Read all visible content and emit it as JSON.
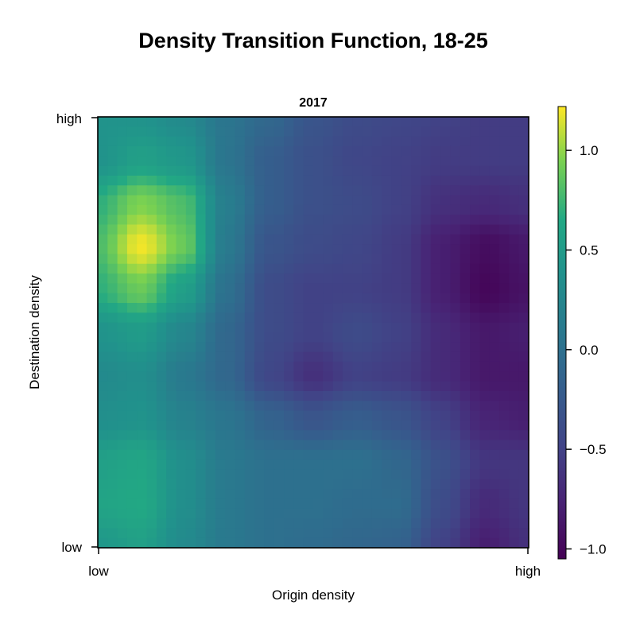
{
  "chart_data": {
    "type": "heatmap",
    "title": "Density Transition Function, 18-25",
    "subtitle": "2017",
    "xlabel": "Origin density",
    "ylabel": "Destination density",
    "xticks": [
      "low",
      "high"
    ],
    "yticks": [
      "low",
      "high"
    ],
    "colormap": "viridis",
    "colorbar": {
      "range": [
        -1.05,
        1.22
      ],
      "ticks": [
        -1.0,
        -0.5,
        0.0,
        0.5,
        1.0
      ],
      "tick_labels": [
        "−1.0",
        "−0.5",
        "0.0",
        "0.5",
        "1.0"
      ]
    },
    "grid": false,
    "x": [
      0.0,
      0.1,
      0.2,
      0.3,
      0.4,
      0.5,
      0.6,
      0.7,
      0.8,
      0.9,
      1.0
    ],
    "y": [
      0.0,
      0.1,
      0.2,
      0.3,
      0.4,
      0.5,
      0.6,
      0.7,
      0.8,
      0.9,
      1.0
    ],
    "z": [
      [
        0.45,
        0.55,
        0.3,
        0.1,
        0.0,
        -0.05,
        -0.1,
        -0.15,
        -0.5,
        -0.8,
        -0.65
      ],
      [
        0.6,
        0.65,
        0.35,
        0.1,
        0.0,
        0.0,
        -0.05,
        -0.05,
        -0.4,
        -0.7,
        -0.6
      ],
      [
        0.55,
        0.62,
        0.35,
        0.1,
        0.0,
        0.0,
        0.0,
        -0.1,
        -0.35,
        -0.6,
        -0.6
      ],
      [
        0.35,
        0.4,
        0.2,
        0.05,
        -0.15,
        -0.3,
        -0.2,
        -0.3,
        -0.5,
        -0.75,
        -0.8
      ],
      [
        0.3,
        0.35,
        0.1,
        -0.1,
        -0.45,
        -0.65,
        -0.5,
        -0.55,
        -0.7,
        -0.85,
        -0.85
      ],
      [
        0.4,
        0.5,
        0.25,
        -0.1,
        -0.4,
        -0.5,
        -0.4,
        -0.5,
        -0.7,
        -0.85,
        -0.8
      ],
      [
        0.7,
        0.9,
        0.55,
        0.0,
        -0.4,
        -0.5,
        -0.5,
        -0.55,
        -0.8,
        -1.0,
        -0.9
      ],
      [
        0.8,
        1.2,
        0.9,
        0.1,
        -0.3,
        -0.4,
        -0.45,
        -0.55,
        -0.8,
        -0.95,
        -0.85
      ],
      [
        0.7,
        0.95,
        0.8,
        0.15,
        -0.2,
        -0.35,
        -0.4,
        -0.5,
        -0.65,
        -0.7,
        -0.65
      ],
      [
        0.4,
        0.55,
        0.45,
        0.05,
        -0.2,
        -0.35,
        -0.45,
        -0.5,
        -0.55,
        -0.55,
        -0.55
      ],
      [
        0.4,
        0.4,
        0.3,
        0.05,
        -0.1,
        -0.3,
        -0.4,
        -0.45,
        -0.5,
        -0.55,
        -0.55
      ]
    ]
  }
}
